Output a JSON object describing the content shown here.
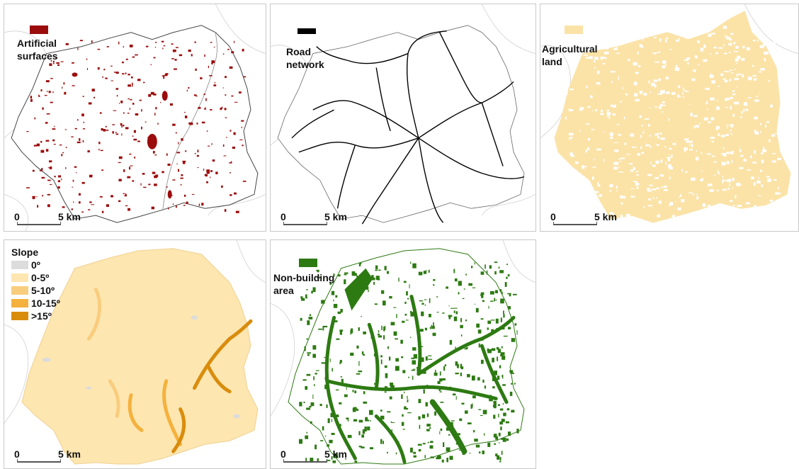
{
  "panels": [
    {
      "id": "artificial",
      "legend": [
        "Artificial",
        "surfaces"
      ],
      "color": "#9b0c0c"
    },
    {
      "id": "road",
      "legend": [
        "Road",
        "network"
      ],
      "color": "#000000"
    },
    {
      "id": "agri",
      "legend": [
        "Agricultural",
        "land"
      ],
      "color": "#fbe3a8"
    },
    {
      "id": "slope",
      "legend_title": "Slope"
    },
    {
      "id": "nonbuild",
      "legend": [
        "Non-building",
        "area"
      ],
      "color": "#2d7a12"
    }
  ],
  "slope_classes": [
    {
      "label": "0º",
      "color": "#dcdcdc"
    },
    {
      "label": "0-5º",
      "color": "#fde6b0"
    },
    {
      "label": "5-10º",
      "color": "#f9cd7e"
    },
    {
      "label": "10-15º",
      "color": "#f5b13d"
    },
    {
      "label": ">15º",
      "color": "#d98c0c"
    }
  ],
  "scalebar": {
    "zero": "0",
    "distance": "5 km"
  }
}
